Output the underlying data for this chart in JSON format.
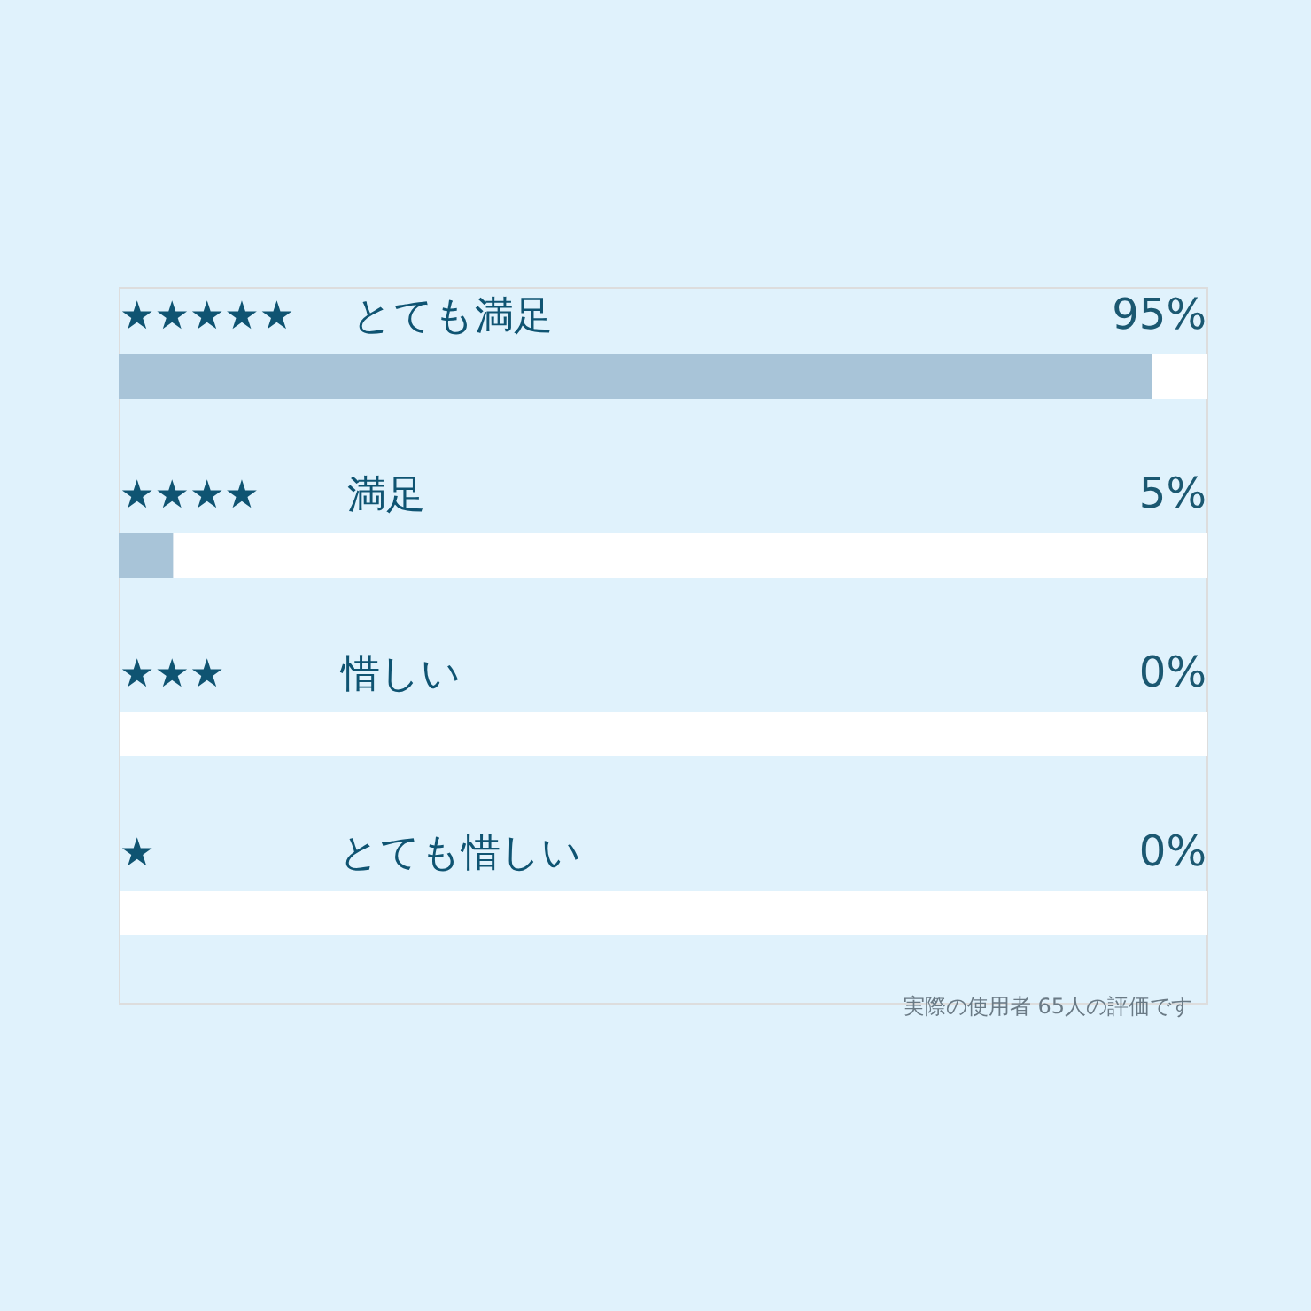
{
  "chart_data": {
    "type": "bar",
    "orientation": "horizontal",
    "categories": [
      "★★★★★ とても満足",
      "★★★★ 満足",
      "★★★ 惜しい",
      "★ とても惜しい"
    ],
    "values": [
      95,
      5,
      0,
      0
    ],
    "color": "#a8c4d8",
    "xlim": [
      0,
      100
    ],
    "value_labels": [
      "95%",
      "5%",
      "0%",
      "0%"
    ],
    "tick_labels": "y",
    "grid": "y",
    "annotations": [
      "実際の使用者 65人の評価です"
    ]
  }
}
